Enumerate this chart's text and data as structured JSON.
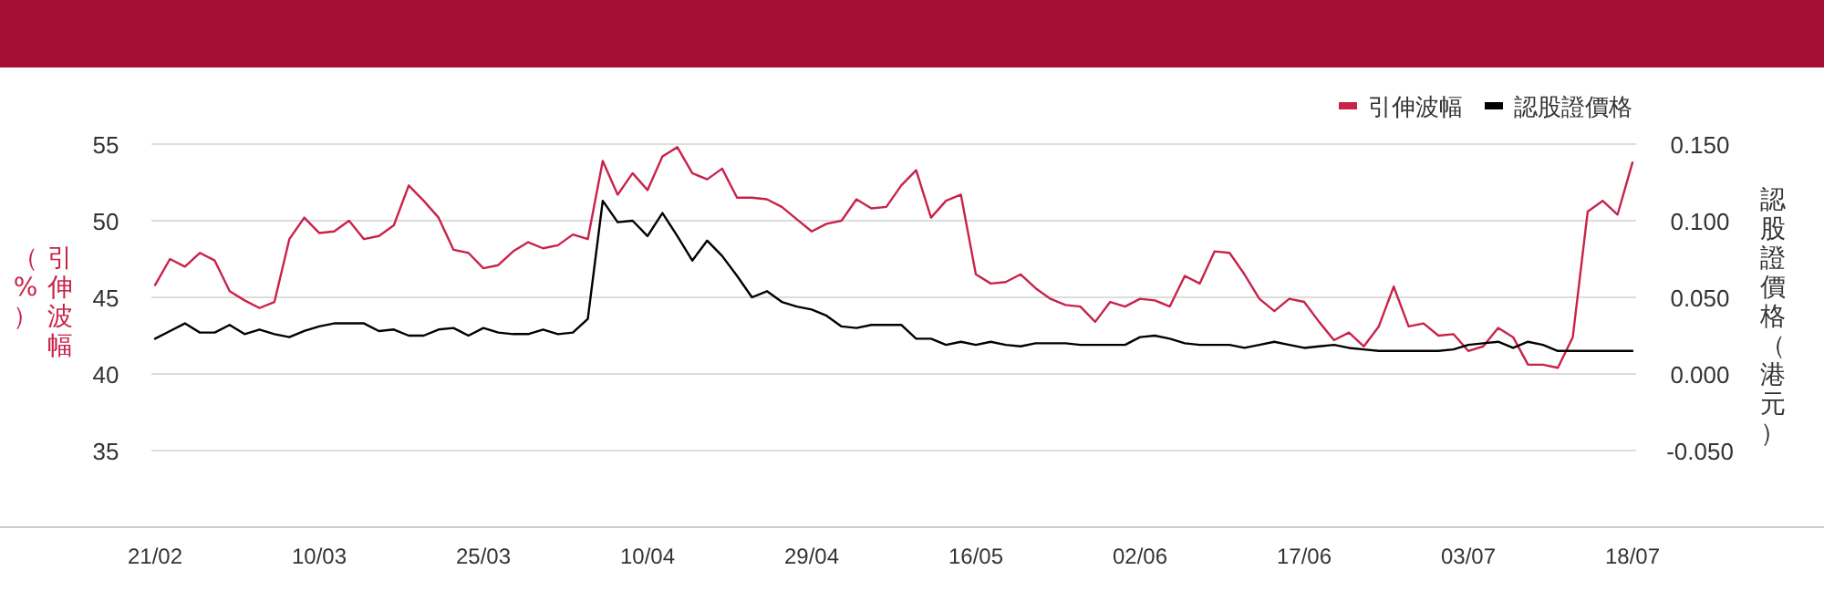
{
  "chart_data": {
    "type": "line",
    "ylabel": "引伸波幅（%）",
    "y2label": "認股證價格（港元）",
    "categories": [
      "21/02",
      null,
      null,
      null,
      null,
      null,
      null,
      null,
      null,
      null,
      null,
      "10/03",
      null,
      null,
      null,
      null,
      null,
      null,
      null,
      null,
      null,
      null,
      "25/03",
      null,
      null,
      null,
      null,
      null,
      null,
      null,
      null,
      null,
      null,
      "10/04",
      null,
      null,
      null,
      null,
      null,
      null,
      null,
      null,
      null,
      null,
      "29/04",
      null,
      null,
      null,
      null,
      null,
      null,
      null,
      null,
      null,
      null,
      "16/05",
      null,
      null,
      null,
      null,
      null,
      null,
      null,
      null,
      null,
      null,
      "02/06",
      null,
      null,
      null,
      null,
      null,
      null,
      null,
      null,
      null,
      null,
      "17/06",
      null,
      null,
      null,
      null,
      null,
      null,
      null,
      null,
      null,
      null,
      "03/07",
      null,
      null,
      null,
      null,
      null,
      null,
      null,
      null,
      null,
      null,
      "18/07"
    ],
    "series": [
      {
        "name": "引伸波幅",
        "color": "#c8234a",
        "values": [
          45.8,
          47.5,
          47.0,
          47.9,
          47.4,
          45.4,
          44.8,
          44.3,
          44.7,
          48.8,
          50.2,
          49.2,
          49.3,
          50.0,
          48.8,
          49.0,
          49.7,
          52.3,
          51.3,
          50.2,
          48.1,
          47.9,
          46.9,
          47.1,
          48.0,
          48.6,
          48.2,
          48.4,
          49.1,
          48.8,
          53.9,
          51.7,
          53.1,
          52.0,
          54.2,
          54.8,
          53.1,
          52.7,
          53.4,
          51.5,
          51.5,
          51.4,
          50.9,
          50.1,
          49.3,
          49.8,
          50.0,
          51.4,
          50.8,
          50.9,
          52.3,
          53.3,
          50.2,
          51.3,
          51.7,
          46.5,
          45.9,
          46.0,
          46.5,
          45.6,
          44.9,
          44.5,
          44.4,
          43.4,
          44.7,
          44.4,
          44.9,
          44.8,
          44.4,
          46.4,
          45.9,
          48.0,
          47.9,
          46.5,
          44.9,
          44.1,
          44.9,
          44.7,
          43.4,
          42.2,
          42.7,
          41.8,
          43.1,
          45.7,
          43.1,
          43.3,
          42.5,
          42.6,
          41.5,
          41.8,
          43.0,
          42.4,
          40.6,
          40.6,
          40.4,
          42.4,
          50.6,
          51.3,
          50.4,
          53.8
        ]
      },
      {
        "name": "認股證價格",
        "color": "#000000",
        "axis": "y2",
        "values": [
          0.023,
          0.028,
          0.033,
          0.027,
          0.027,
          0.032,
          0.026,
          0.029,
          0.026,
          0.024,
          0.028,
          0.031,
          0.033,
          0.033,
          0.033,
          0.028,
          0.029,
          0.025,
          0.025,
          0.029,
          0.03,
          0.025,
          0.03,
          0.027,
          0.026,
          0.026,
          0.029,
          0.026,
          0.027,
          0.036,
          0.113,
          0.099,
          0.1,
          0.09,
          0.105,
          0.09,
          0.074,
          0.087,
          0.077,
          0.064,
          0.05,
          0.054,
          0.047,
          0.044,
          0.042,
          0.038,
          0.031,
          0.03,
          0.032,
          0.032,
          0.032,
          0.023,
          0.023,
          0.019,
          0.021,
          0.019,
          0.021,
          0.019,
          0.018,
          0.02,
          0.02,
          0.02,
          0.019,
          0.019,
          0.019,
          0.019,
          0.024,
          0.025,
          0.023,
          0.02,
          0.019,
          0.019,
          0.019,
          0.017,
          0.019,
          0.021,
          0.019,
          0.017,
          0.018,
          0.019,
          0.017,
          0.016,
          0.015,
          0.015,
          0.015,
          0.015,
          0.015,
          0.016,
          0.019,
          0.02,
          0.021,
          0.017,
          0.021,
          0.019,
          0.015,
          0.015,
          0.015,
          0.015,
          0.015,
          0.015
        ]
      }
    ],
    "ylim": [
      30,
      55
    ],
    "yticks": [
      35,
      40,
      45,
      50,
      55
    ],
    "y2lim": [
      -0.1,
      0.15
    ],
    "y2ticks": [
      {
        "value": -0.05,
        "label": "-0.050"
      },
      {
        "value": 0,
        "label": "0.000"
      },
      {
        "value": 0.05,
        "label": "0.050"
      },
      {
        "value": 0.1,
        "label": "0.100"
      },
      {
        "value": 0.15,
        "label": "0.150"
      }
    ],
    "grid": "y",
    "legend": "top right"
  }
}
